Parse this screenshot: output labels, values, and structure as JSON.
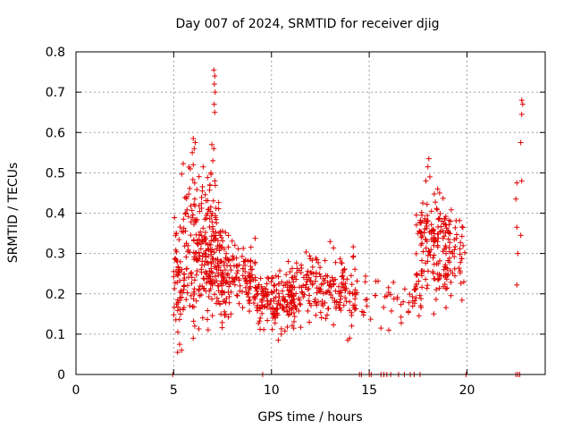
{
  "chart_data": {
    "type": "scatter",
    "title": "Day 007 of 2024, SRMTID for receiver djig",
    "xlabel": "GPS time / hours",
    "ylabel": "SRMTID / TECUs",
    "xlim": [
      0,
      24
    ],
    "ylim": [
      0,
      0.8
    ],
    "xticks": [
      "0",
      "5",
      "10",
      "15",
      "20"
    ],
    "yticks": [
      "0",
      "0.1",
      "0.2",
      "0.3",
      "0.4",
      "0.5",
      "0.6",
      "0.7",
      "0.8"
    ],
    "grid": true,
    "marker": "plus",
    "color": "#e00000",
    "series": [
      {
        "name": "SRMTID",
        "anchors": [
          [
            4.95,
            0.0
          ],
          [
            9.55,
            0.0
          ],
          [
            14.5,
            0.0
          ],
          [
            14.6,
            0.0
          ],
          [
            15.0,
            0.0
          ],
          [
            15.1,
            0.0
          ],
          [
            15.6,
            0.0
          ],
          [
            15.75,
            0.0
          ],
          [
            15.9,
            0.0
          ],
          [
            16.1,
            0.0
          ],
          [
            16.5,
            0.0
          ],
          [
            16.8,
            0.0
          ],
          [
            17.1,
            0.0
          ],
          [
            17.3,
            0.0
          ],
          [
            17.6,
            0.0
          ],
          [
            19.95,
            0.0
          ],
          [
            22.5,
            0.0
          ],
          [
            22.6,
            0.0
          ],
          [
            22.7,
            0.0
          ],
          [
            7.05,
            0.755
          ],
          [
            7.1,
            0.74
          ],
          [
            7.08,
            0.72
          ],
          [
            7.12,
            0.7
          ],
          [
            7.07,
            0.67
          ],
          [
            7.1,
            0.65
          ],
          [
            6.95,
            0.57
          ],
          [
            7.05,
            0.56
          ],
          [
            6.0,
            0.585
          ],
          [
            6.1,
            0.575
          ],
          [
            6.05,
            0.56
          ],
          [
            5.95,
            0.55
          ],
          [
            6.0,
            0.52
          ],
          [
            5.85,
            0.51
          ],
          [
            7.0,
            0.53
          ],
          [
            6.9,
            0.5
          ],
          [
            7.1,
            0.48
          ],
          [
            6.85,
            0.47
          ],
          [
            18.05,
            0.535
          ],
          [
            18.0,
            0.515
          ],
          [
            18.1,
            0.49
          ],
          [
            17.9,
            0.48
          ],
          [
            18.5,
            0.46
          ],
          [
            18.6,
            0.45
          ],
          [
            22.8,
            0.68
          ],
          [
            22.85,
            0.67
          ],
          [
            22.8,
            0.645
          ],
          [
            22.75,
            0.575
          ],
          [
            22.8,
            0.48
          ],
          [
            22.55,
            0.475
          ],
          [
            22.5,
            0.435
          ],
          [
            22.55,
            0.365
          ],
          [
            22.75,
            0.345
          ],
          [
            22.6,
            0.3
          ],
          [
            22.55,
            0.222
          ],
          [
            7.0,
            0.235
          ],
          [
            6.95,
            0.23
          ],
          [
            5.3,
            0.075
          ],
          [
            5.4,
            0.06
          ],
          [
            5.2,
            0.055
          ],
          [
            6.0,
            0.09
          ],
          [
            10.35,
            0.085
          ],
          [
            10.5,
            0.1
          ],
          [
            13.9,
            0.085
          ],
          [
            14.0,
            0.09
          ],
          [
            15.6,
            0.115
          ],
          [
            16.0,
            0.11
          ]
        ],
        "clusters": [
          [
            5.0,
            7.6,
            0.08,
            0.45,
            260
          ],
          [
            5.4,
            7.2,
            0.25,
            0.55,
            70
          ],
          [
            7.4,
            9.2,
            0.1,
            0.37,
            130
          ],
          [
            9.2,
            11.2,
            0.08,
            0.28,
            150
          ],
          [
            10.8,
            14.4,
            0.1,
            0.34,
            200
          ],
          [
            14.6,
            17.7,
            0.1,
            0.27,
            50
          ],
          [
            17.4,
            19.9,
            0.12,
            0.47,
            160
          ],
          [
            17.6,
            19.2,
            0.3,
            0.45,
            40
          ]
        ]
      }
    ]
  }
}
